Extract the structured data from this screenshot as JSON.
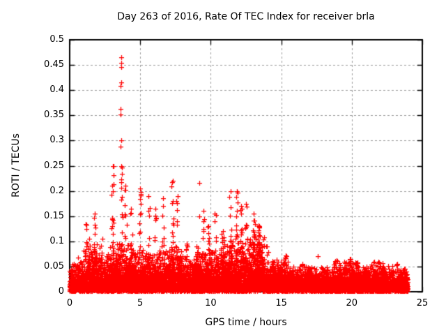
{
  "chart_data": {
    "type": "scatter",
    "title": "Day 263 of 2016, Rate Of TEC Index for receiver brla",
    "xlabel": "GPS time / hours",
    "ylabel": "ROTI / TECUs",
    "xlim": [
      0,
      25
    ],
    "ylim": [
      0,
      0.5
    ],
    "xticks": [
      {
        "v": 0,
        "label": "0"
      },
      {
        "v": 5,
        "label": "5"
      },
      {
        "v": 10,
        "label": "10"
      },
      {
        "v": 15,
        "label": "15"
      },
      {
        "v": 20,
        "label": "20"
      },
      {
        "v": 25,
        "label": "25"
      }
    ],
    "yticks": [
      {
        "v": 0,
        "label": "0"
      },
      {
        "v": 0.05,
        "label": "0.05"
      },
      {
        "v": 0.1,
        "label": "0.1"
      },
      {
        "v": 0.15,
        "label": "0.15"
      },
      {
        "v": 0.2,
        "label": "0.2"
      },
      {
        "v": 0.25,
        "label": "0.25"
      },
      {
        "v": 0.3,
        "label": "0.3"
      },
      {
        "v": 0.35,
        "label": "0.35"
      },
      {
        "v": 0.4,
        "label": "0.4"
      },
      {
        "v": 0.45,
        "label": "0.45"
      },
      {
        "v": 0.5,
        "label": "0.5"
      }
    ],
    "grid": true,
    "legend": "none",
    "marker": {
      "shape": "plus",
      "color": "#ff0000",
      "size": 7
    },
    "grid_color": "#9c9c9c",
    "frame_color": "#000000",
    "seed": 263,
    "data_extent_hours": [
      0,
      23.95
    ],
    "baseline_band": {
      "description": "dense noise band of ROTI values hugging 0-0.05 TECUs across all 24 hours",
      "n_points": 9500,
      "envelope": [
        [
          0,
          0.055
        ],
        [
          0.5,
          0.07
        ],
        [
          1,
          0.09
        ],
        [
          1.5,
          0.095
        ],
        [
          2.2,
          0.075
        ],
        [
          2.8,
          0.09
        ],
        [
          3.3,
          0.095
        ],
        [
          4.3,
          0.085
        ],
        [
          5.3,
          0.08
        ],
        [
          6.3,
          0.085
        ],
        [
          7.0,
          0.09
        ],
        [
          8.0,
          0.07
        ],
        [
          9.0,
          0.08
        ],
        [
          9.7,
          0.085
        ],
        [
          10.8,
          0.1
        ],
        [
          12.3,
          0.105
        ],
        [
          13.0,
          0.12
        ],
        [
          13.8,
          0.06
        ],
        [
          14.6,
          0.065
        ],
        [
          15.6,
          0.05
        ],
        [
          17.4,
          0.048
        ],
        [
          18.6,
          0.06
        ],
        [
          19.6,
          0.06
        ],
        [
          20.6,
          0.05
        ],
        [
          21.4,
          0.058
        ],
        [
          22.4,
          0.05
        ],
        [
          23.95,
          0.048
        ]
      ]
    },
    "spikes": [
      [
        1.15,
        0.135,
        8
      ],
      [
        1.4,
        0.105,
        6
      ],
      [
        1.8,
        0.155,
        10
      ],
      [
        2.3,
        0.105,
        6
      ],
      [
        3.05,
        0.25,
        20
      ],
      [
        3.67,
        0.25,
        16
      ],
      [
        3.95,
        0.21,
        12
      ],
      [
        4.35,
        0.165,
        8
      ],
      [
        5.0,
        0.205,
        14
      ],
      [
        5.6,
        0.19,
        10
      ],
      [
        6.1,
        0.165,
        8
      ],
      [
        6.6,
        0.185,
        10
      ],
      [
        7.3,
        0.22,
        14
      ],
      [
        7.65,
        0.19,
        8
      ],
      [
        7.9,
        0.08,
        5
      ],
      [
        8.3,
        0.095,
        6
      ],
      [
        9.0,
        0.09,
        6
      ],
      [
        9.5,
        0.16,
        8
      ],
      [
        9.85,
        0.13,
        8
      ],
      [
        10.3,
        0.155,
        8
      ],
      [
        10.85,
        0.12,
        8
      ],
      [
        11.4,
        0.2,
        12
      ],
      [
        11.85,
        0.2,
        16
      ],
      [
        12.15,
        0.17,
        12
      ],
      [
        12.5,
        0.175,
        10
      ],
      [
        13.05,
        0.155,
        16
      ],
      [
        13.4,
        0.131,
        18
      ],
      [
        14.0,
        0.09,
        6
      ],
      [
        15.3,
        0.072,
        6
      ],
      [
        16.5,
        0.055,
        4
      ],
      [
        18.9,
        0.062,
        5
      ],
      [
        19.9,
        0.065,
        6
      ],
      [
        20.4,
        0.058,
        4
      ],
      [
        21.9,
        0.06,
        5
      ],
      [
        23.2,
        0.055,
        4
      ]
    ],
    "outliers": [
      [
        3.65,
        0.465
      ],
      [
        3.66,
        0.454
      ],
      [
        3.65,
        0.446
      ],
      [
        3.67,
        0.415
      ],
      [
        3.62,
        0.408
      ],
      [
        3.63,
        0.363
      ],
      [
        3.6,
        0.352
      ],
      [
        3.64,
        0.3
      ],
      [
        3.63,
        0.288
      ],
      [
        9.2,
        0.216
      ],
      [
        9.19,
        0.149
      ],
      [
        17.6,
        0.071
      ]
    ]
  }
}
